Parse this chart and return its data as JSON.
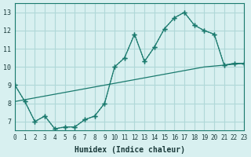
{
  "xlabel": "Humidex (Indice chaleur)",
  "xlim": [
    0,
    23
  ],
  "ylim": [
    6.5,
    13.5
  ],
  "xticks": [
    0,
    1,
    2,
    3,
    4,
    5,
    6,
    7,
    8,
    9,
    10,
    11,
    12,
    13,
    14,
    15,
    16,
    17,
    18,
    19,
    20,
    21,
    22,
    23
  ],
  "yticks": [
    7,
    8,
    9,
    10,
    11,
    12,
    13
  ],
  "bg_color": "#d8f0f0",
  "line_color": "#1a7a6e",
  "grid_color": "#b0d8d8",
  "line1_x": [
    0,
    1,
    2,
    3,
    4,
    5,
    6,
    7,
    8,
    9,
    10,
    11,
    12,
    13,
    14,
    15,
    16,
    17,
    18,
    19,
    20,
    21,
    22,
    23
  ],
  "line1_y": [
    9.0,
    8.1,
    7.0,
    7.3,
    6.6,
    6.7,
    6.7,
    7.1,
    7.3,
    8.0,
    10.0,
    10.5,
    11.8,
    10.3,
    11.1,
    12.1,
    12.7,
    13.0,
    12.3,
    12.0,
    11.8,
    10.1,
    10.2,
    10.2
  ],
  "line2_x": [
    0,
    1,
    2,
    3,
    4,
    5,
    6,
    7,
    8,
    9,
    10,
    11,
    12,
    13,
    14,
    15,
    16,
    17,
    18,
    19,
    20,
    21,
    22,
    23
  ],
  "line2_y": [
    9.0,
    8.1,
    7.0,
    7.3,
    6.6,
    6.7,
    6.7,
    7.1,
    7.3,
    8.0,
    10.0,
    10.5,
    11.8,
    10.3,
    11.1,
    12.1,
    12.7,
    13.0,
    12.3,
    12.0,
    11.8,
    10.1,
    10.2,
    10.2
  ],
  "line3_x": [
    0,
    1,
    2,
    3,
    4,
    5,
    6,
    7,
    8,
    9,
    10,
    11,
    12,
    13,
    14,
    15,
    16,
    17,
    18,
    19,
    20,
    21,
    22,
    23
  ],
  "line3_y": [
    8.1,
    8.2,
    8.3,
    8.4,
    8.5,
    8.6,
    8.7,
    8.8,
    8.9,
    9.0,
    9.1,
    9.2,
    9.3,
    9.4,
    9.5,
    9.6,
    9.7,
    9.8,
    9.9,
    10.0,
    10.05,
    10.1,
    10.15,
    10.2
  ]
}
